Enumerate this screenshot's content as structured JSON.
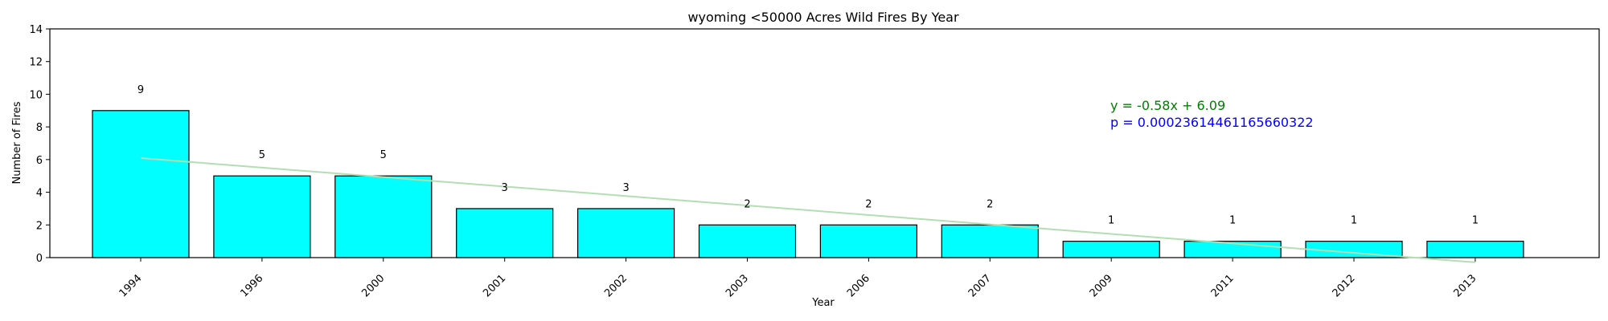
{
  "chart_data": {
    "type": "bar",
    "title": "wyoming <50000 Acres Wild Fires By Year",
    "xlabel": "Year",
    "ylabel": "Number of Fires",
    "categories": [
      "1994",
      "1996",
      "2000",
      "2001",
      "2002",
      "2003",
      "2006",
      "2007",
      "2009",
      "2011",
      "2012",
      "2013"
    ],
    "values": [
      9,
      5,
      5,
      3,
      3,
      2,
      2,
      2,
      1,
      1,
      1,
      1
    ],
    "data_labels": [
      "9",
      "5",
      "5",
      "3",
      "3",
      "2",
      "2",
      "2",
      "1",
      "1",
      "1",
      "1"
    ],
    "ylim": [
      0,
      14
    ],
    "yticks": [
      0,
      2,
      4,
      6,
      8,
      10,
      12,
      14
    ],
    "ytick_labels": [
      "0",
      "2",
      "4",
      "6",
      "8",
      "10",
      "12",
      "14"
    ],
    "grid": false,
    "trendline": {
      "slope": -0.58,
      "intercept": 6.09,
      "color": "#b2dfb2"
    },
    "annotations": {
      "equation": "y = -0.58x + 6.09",
      "equation_color": "#008000",
      "p_value": "p = 0.00023614461165660322",
      "p_value_color": "#0000ff"
    },
    "colors": {
      "bar_fill": "#00ffff",
      "bar_edge": "#000000"
    }
  }
}
